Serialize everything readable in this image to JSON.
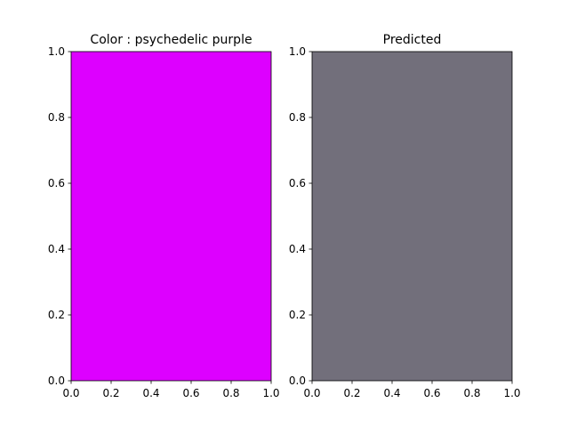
{
  "chart_data": [
    {
      "type": "swatch",
      "title": "Color : psychedelic purple",
      "fill_color": "#dd00ff",
      "xlim": [
        0.0,
        1.0
      ],
      "ylim": [
        0.0,
        1.0
      ],
      "xticks": [
        "0.0",
        "0.2",
        "0.4",
        "0.6",
        "0.8",
        "1.0"
      ],
      "yticks": [
        "0.0",
        "0.2",
        "0.4",
        "0.6",
        "0.8",
        "1.0"
      ],
      "grid": false
    },
    {
      "type": "swatch",
      "title": "Predicted",
      "fill_color": "#726f7b",
      "xlim": [
        0.0,
        1.0
      ],
      "ylim": [
        0.0,
        1.0
      ],
      "xticks": [
        "0.0",
        "0.2",
        "0.4",
        "0.6",
        "0.8",
        "1.0"
      ],
      "yticks": [
        "0.0",
        "0.2",
        "0.4",
        "0.6",
        "0.8",
        "1.0"
      ],
      "grid": false
    }
  ]
}
